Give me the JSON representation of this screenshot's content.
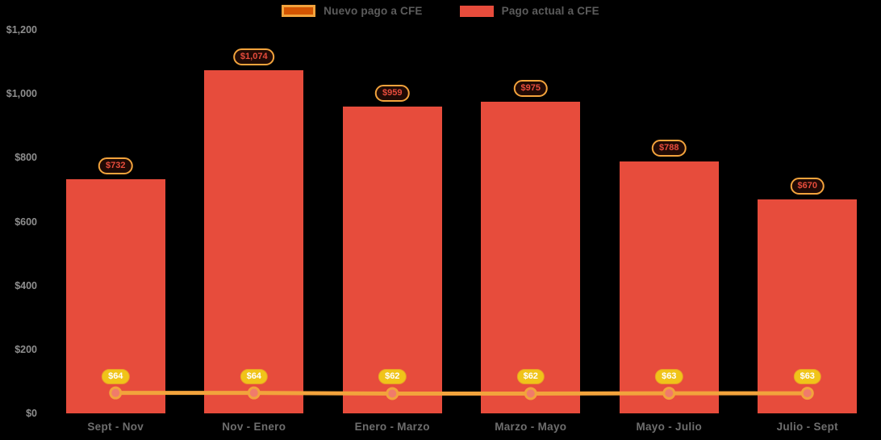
{
  "chart_data": {
    "type": "bar+line",
    "title": "",
    "categories": [
      "Sept - Nov",
      "Nov - Enero",
      "Enero - Marzo",
      "Marzo - Mayo",
      "Mayo - Julio",
      "Julio - Sept"
    ],
    "series": [
      {
        "name": "Pago actual a CFE",
        "type": "bar",
        "color": "#e74c3c",
        "values": [
          732,
          1074,
          959,
          975,
          788,
          670
        ],
        "labels": [
          "$732",
          "$1,074",
          "$959",
          "$975",
          "$788",
          "$670"
        ]
      },
      {
        "name": "Nuevo pago a CFE",
        "type": "line",
        "color": "#f2a33c",
        "marker_fill": "#f07b6b",
        "values": [
          64,
          64,
          62,
          62,
          63,
          63
        ],
        "labels": [
          "$64",
          "$64",
          "$62",
          "$62",
          "$63",
          "$63"
        ]
      }
    ],
    "ylim": [
      0,
      1200
    ],
    "y_ticks": [
      "$0",
      "$200",
      "$400",
      "$600",
      "$800",
      "$1,000",
      "$1,200"
    ],
    "y_tick_values": [
      0,
      200,
      400,
      600,
      800,
      1000,
      1200
    ],
    "grid": false,
    "legend_position": "top-center",
    "background": "#000000"
  },
  "legend": {
    "items": [
      {
        "label": "Nuevo pago a CFE"
      },
      {
        "label": "Pago actual a CFE"
      }
    ]
  },
  "colors": {
    "bar": "#e74c3c",
    "line": "#f2a33c",
    "marker_fill": "#f07b6b",
    "bar_pill_border": "#f2a33c",
    "bar_pill_bg": "#200a05",
    "bar_pill_text": "#e74c3c",
    "line_pill_bg": "#f0c419",
    "line_pill_text": "#ffffff",
    "legend_swatch_line_fill": "#d35400",
    "legend_swatch_line_border": "#f2a33c",
    "legend_swatch_bar": "#e74c3c"
  }
}
